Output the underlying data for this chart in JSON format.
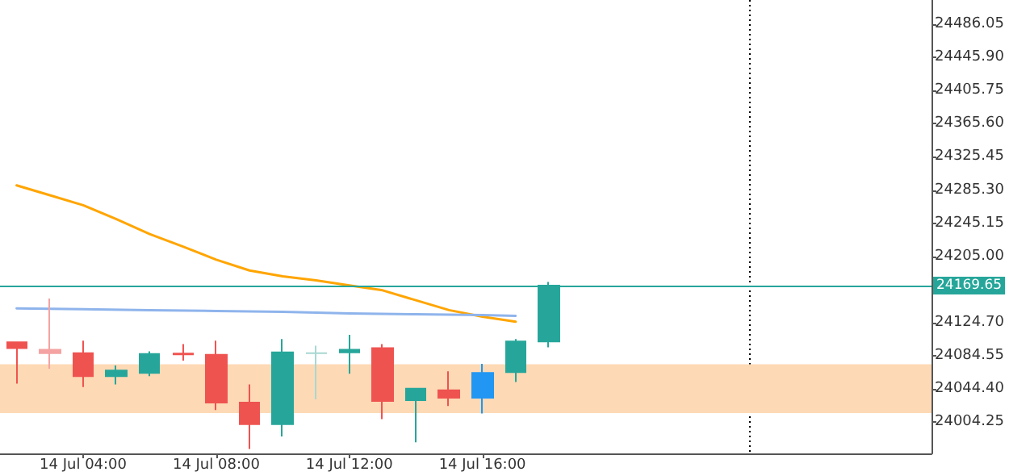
{
  "chart_data": {
    "type": "candlestick",
    "categories": [
      null,
      null,
      "14 Jul 04:00",
      null,
      null,
      null,
      "14 Jul 08:00",
      null,
      null,
      null,
      "14 Jul 12:00",
      null,
      null,
      null,
      "14 Jul 16:00",
      null,
      null,
      null,
      null,
      null,
      null,
      null,
      null,
      null,
      null,
      null,
      null,
      null
    ],
    "ylim": [
      23966.6,
      24515.3
    ],
    "yticks": [
      {
        "value": 24004.25,
        "label": "24004.25"
      },
      {
        "value": 24044.4,
        "label": "24044.40"
      },
      {
        "value": 24084.55,
        "label": "24084.55"
      },
      {
        "value": 24124.7,
        "label": "24124.70"
      },
      {
        "value": 24205,
        "label": "24205.00"
      },
      {
        "value": 24245.15,
        "label": "24245.15"
      },
      {
        "value": 24285.3,
        "label": "24285.30"
      },
      {
        "value": 24325.45,
        "label": "24325.45"
      },
      {
        "value": 24365.6,
        "label": "24365.60"
      },
      {
        "value": 24405.75,
        "label": "24405.75"
      },
      {
        "value": 24445.9,
        "label": "24445.90"
      },
      {
        "value": 24486.05,
        "label": "24486.05"
      }
    ],
    "marker": "none",
    "line_style": "solid",
    "series": [
      {
        "type": "line",
        "color": "#ffa500",
        "values": [
          24291,
          24279,
          24267,
          24250,
          24232,
          24217,
          24201,
          24188,
          24181,
          24176,
          24170,
          24164,
          24152,
          24140,
          24132,
          24126,
          null,
          null,
          null,
          null,
          null,
          null,
          null,
          null,
          null,
          null,
          null,
          null
        ]
      },
      {
        "type": "line",
        "color": "#8fb4ec",
        "values": [
          24142,
          null,
          24141,
          null,
          24140,
          null,
          24139,
          null,
          24138,
          null,
          24136,
          null,
          24135,
          null,
          24134,
          24133,
          null,
          null,
          null,
          null,
          null,
          null,
          null,
          null,
          null,
          null,
          null,
          null
        ]
      },
      {
        "ohlc": [
          [
            24101,
            24101,
            24051,
            24094
          ],
          [
            24092,
            24154,
            24069,
            24088
          ],
          [
            24088,
            24103,
            24047,
            24060
          ],
          [
            24060,
            24073,
            24050,
            24067
          ],
          [
            24064,
            24090,
            24060,
            24087
          ],
          [
            24087.5,
            24099,
            24079,
            24086.5
          ],
          [
            24086,
            24103,
            24019,
            24028
          ],
          [
            24028,
            24050,
            23972,
            24002
          ],
          [
            24002,
            24105,
            23987,
            24089
          ],
          [
            24088,
            24097,
            24032,
            24088
          ],
          [
            24089,
            24110,
            24063,
            24092
          ],
          [
            24094,
            24099,
            24008,
            24030
          ],
          [
            24031,
            24045,
            23980,
            24045
          ],
          [
            24043,
            24066,
            24024,
            24034
          ],
          [
            24034,
            24075,
            24015,
            24064
          ],
          [
            24065,
            24105,
            24053,
            24102
          ],
          [
            24102,
            24174,
            24095,
            24169.65
          ],
          null,
          null,
          null,
          null,
          null,
          null,
          null,
          null,
          null,
          null,
          null
        ],
        "colors": [
          "#ef5350",
          "#f4a3a2",
          "#ef5350",
          "#26a69a",
          "#26a69a",
          "#ef5350",
          "#ef5350",
          "#ef5350",
          "#26a69a",
          "#a8d8d2",
          "#26a69a",
          "#ef5350",
          "#26a69a",
          "#ef5350",
          "#2196f3",
          "#26a69a",
          "#26a69a",
          null,
          null,
          null,
          null,
          null,
          null,
          null,
          null,
          null,
          null,
          null
        ]
      }
    ],
    "ref_lines": [
      {
        "axis": "y",
        "value": 24169.65,
        "label": "24169.65",
        "color": "#26a69a"
      }
    ],
    "bands": [
      {
        "axis": "y",
        "from": 24015.3,
        "to": 24074.5,
        "color": "#fdd9b5"
      }
    ]
  }
}
